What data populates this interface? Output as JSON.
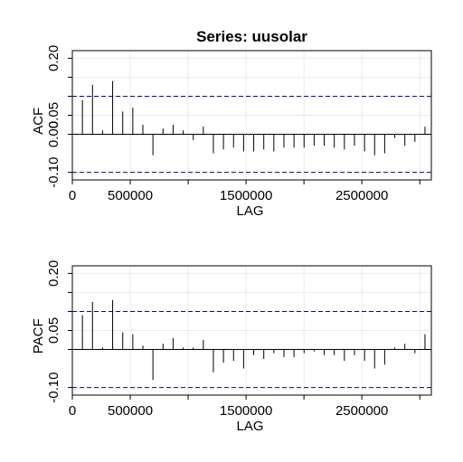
{
  "chart_data": [
    {
      "type": "bar",
      "title": "Series:  uusolar",
      "xlabel": "LAG",
      "ylabel": "ACF",
      "xlim": [
        0,
        3100000
      ],
      "ylim": [
        -0.12,
        0.22
      ],
      "xticks": [
        0,
        500000,
        1500000,
        2500000
      ],
      "xtick_labels": [
        "0",
        "500000",
        "1500000",
        "2500000"
      ],
      "xtick_marks": [
        0,
        500000,
        1000000,
        1500000,
        2000000,
        2500000,
        3000000
      ],
      "yticks": [
        -0.1,
        0.05,
        0.2
      ],
      "ytick_labels": [
        "-0.10",
        "0.05",
        "0.20"
      ],
      "yticks_minor": [
        0.0,
        0.1,
        0.15
      ],
      "ytick_minor_labels": [
        "0.00",
        "",
        ""
      ],
      "grid": true,
      "confidence_band": [
        -0.1,
        0.1
      ],
      "x": [
        87000,
        174000,
        261000,
        348000,
        435000,
        522000,
        609000,
        696000,
        783000,
        870000,
        957000,
        1044000,
        1131000,
        1218000,
        1305000,
        1392000,
        1479000,
        1566000,
        1653000,
        1740000,
        1827000,
        1914000,
        2001000,
        2088000,
        2175000,
        2262000,
        2349000,
        2436000,
        2523000,
        2610000,
        2697000,
        2784000,
        2871000,
        2958000,
        3045000
      ],
      "values": [
        0.09,
        0.13,
        0.01,
        0.14,
        0.06,
        0.07,
        0.025,
        -0.055,
        0.015,
        0.025,
        0.01,
        -0.015,
        0.02,
        -0.05,
        -0.04,
        -0.035,
        -0.045,
        -0.045,
        -0.04,
        -0.045,
        -0.035,
        -0.035,
        -0.035,
        -0.03,
        -0.03,
        -0.035,
        -0.04,
        -0.03,
        -0.045,
        -0.055,
        -0.05,
        -0.01,
        -0.03,
        -0.02,
        0.02
      ]
    },
    {
      "type": "bar",
      "title": "",
      "xlabel": "LAG",
      "ylabel": "PACF",
      "xlim": [
        0,
        3100000
      ],
      "ylim": [
        -0.12,
        0.22
      ],
      "xticks": [
        0,
        500000,
        1500000,
        2500000
      ],
      "xtick_labels": [
        "0",
        "500000",
        "1500000",
        "2500000"
      ],
      "xtick_marks": [
        0,
        500000,
        1000000,
        1500000,
        2000000,
        2500000,
        3000000
      ],
      "yticks": [
        -0.1,
        0.05,
        0.2
      ],
      "ytick_labels": [
        "-0.10",
        "0.05",
        "0.20"
      ],
      "yticks_minor": [
        0.0,
        0.1,
        0.15
      ],
      "ytick_minor_labels": [
        "",
        "",
        ""
      ],
      "grid": true,
      "confidence_band": [
        -0.1,
        0.1
      ],
      "x": [
        87000,
        174000,
        261000,
        348000,
        435000,
        522000,
        609000,
        696000,
        783000,
        870000,
        957000,
        1044000,
        1131000,
        1218000,
        1305000,
        1392000,
        1479000,
        1566000,
        1653000,
        1740000,
        1827000,
        1914000,
        2001000,
        2088000,
        2175000,
        2262000,
        2349000,
        2436000,
        2523000,
        2610000,
        2697000,
        2784000,
        2871000,
        2958000,
        3045000
      ],
      "values": [
        0.09,
        0.125,
        0.005,
        0.13,
        0.045,
        0.04,
        0.01,
        -0.08,
        0.015,
        0.03,
        0.005,
        0.005,
        0.025,
        -0.06,
        -0.035,
        -0.03,
        -0.05,
        -0.015,
        -0.025,
        -0.01,
        -0.02,
        -0.02,
        -0.01,
        -0.005,
        -0.015,
        -0.015,
        -0.03,
        -0.015,
        -0.03,
        -0.05,
        -0.04,
        0.005,
        0.015,
        -0.01,
        0.04
      ]
    }
  ]
}
